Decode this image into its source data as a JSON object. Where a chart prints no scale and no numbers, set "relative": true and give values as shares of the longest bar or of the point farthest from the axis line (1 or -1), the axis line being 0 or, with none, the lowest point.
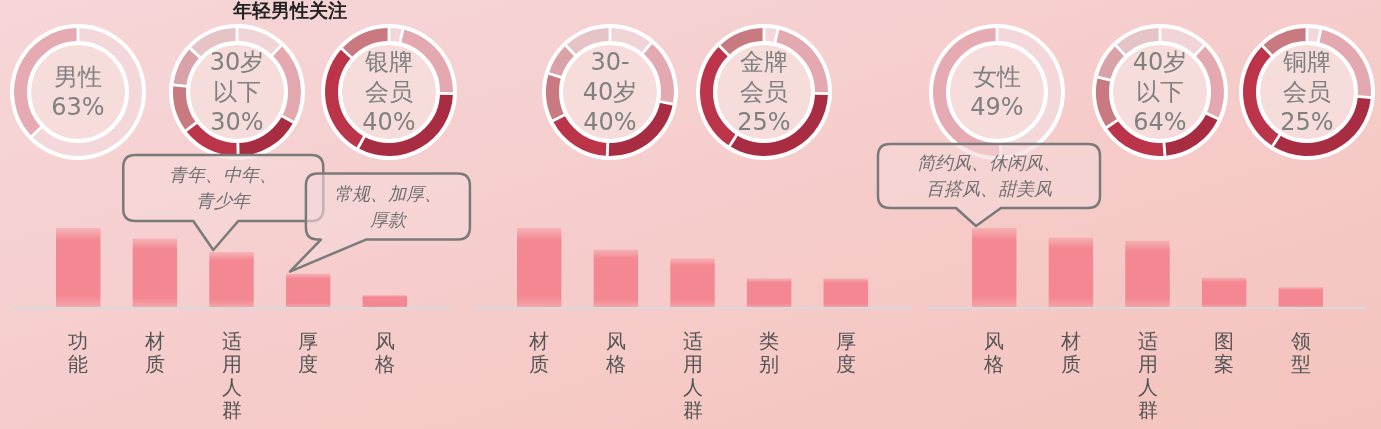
{
  "chart_data": [
    {
      "type": "donut",
      "categories": [
        null,
        null
      ],
      "values": [
        63,
        37
      ],
      "colors": [
        "#f3d7db",
        "#e5aab2"
      ],
      "annotations": [
        "男性",
        "63%"
      ]
    },
    {
      "type": "donut",
      "title": "年轻男性关注",
      "categories": [
        null,
        null,
        null,
        null,
        null,
        null,
        null
      ],
      "values": [
        12,
        21,
        17,
        15,
        12,
        10,
        13
      ],
      "colors": [
        "#f1d4d8",
        "#e4a9b0",
        "#a92d42",
        "#bb344a",
        "#c87a80",
        "#d9a2a8",
        "#e5c3c6"
      ],
      "annotations": [
        "30岁",
        "以下",
        "30%"
      ]
    },
    {
      "type": "donut",
      "categories": [
        null,
        null,
        null,
        null,
        null
      ],
      "values": [
        3,
        22,
        33,
        29,
        13
      ],
      "colors": [
        "#f3d7db",
        "#e4a9b0",
        "#a92d42",
        "#bb344a",
        "#c87a80"
      ],
      "annotations": [
        "银牌",
        "会员",
        "40%"
      ]
    },
    {
      "type": "donut",
      "categories": [
        null,
        null,
        null,
        null,
        null,
        null,
        null
      ],
      "values": [
        11,
        17,
        23,
        17,
        12,
        8,
        12
      ],
      "colors": [
        "#f1d4d8",
        "#e4a9b0",
        "#a92d42",
        "#bb344a",
        "#c87a80",
        "#d9a2a8",
        "#e5c3c6"
      ],
      "annotations": [
        "30-",
        "40岁",
        "40%"
      ]
    },
    {
      "type": "donut",
      "categories": [
        null,
        null,
        null,
        null,
        null
      ],
      "values": [
        3,
        22,
        34,
        29,
        12
      ],
      "colors": [
        "#f3d7db",
        "#e4a9b0",
        "#a92d42",
        "#bb344a",
        "#c87a80"
      ],
      "annotations": [
        "金牌",
        "会员",
        "25%"
      ]
    },
    {
      "type": "donut",
      "categories": [
        null,
        null
      ],
      "values": [
        49,
        51
      ],
      "colors": [
        "#f3d7db",
        "#e5aab2"
      ],
      "annotations": [
        "女性",
        "49%"
      ]
    },
    {
      "type": "donut",
      "categories": [
        null,
        null,
        null,
        null,
        null,
        null,
        null
      ],
      "values": [
        12,
        20,
        17,
        17,
        13,
        9,
        12
      ],
      "colors": [
        "#f1d4d8",
        "#e4a9b0",
        "#a92d42",
        "#bb344a",
        "#c87a80",
        "#d9a2a8",
        "#e5c3c6"
      ],
      "annotations": [
        "40岁",
        "以下",
        "64%"
      ]
    },
    {
      "type": "donut",
      "categories": [
        null,
        null,
        null,
        null,
        null
      ],
      "values": [
        3,
        23,
        33,
        29,
        12
      ],
      "colors": [
        "#f3d7db",
        "#e4a9b0",
        "#a92d42",
        "#bb344a",
        "#c87a80"
      ],
      "annotations": [
        "铜牌",
        "会员",
        "25%"
      ]
    },
    {
      "type": "bar",
      "relative": true,
      "categories": [
        "功能",
        "材质",
        "适用人群",
        "厚度",
        "风格"
      ],
      "values": [
        1,
        0.87,
        0.7,
        0.43,
        0.16
      ],
      "color": "#f4848f",
      "annotations": [
        {
          "text": "青年、中年、青少年",
          "x": "适用人群",
          "y": 0.7
        },
        {
          "text": "常规、加厚、厚款",
          "x": "厚度",
          "y": 0.43
        }
      ]
    },
    {
      "type": "bar",
      "relative": true,
      "categories": [
        "材质",
        "风格",
        "适用人群",
        "类别",
        "厚度"
      ],
      "values": [
        1,
        0.73,
        0.62,
        0.37,
        0.37
      ],
      "color": "#f4848f"
    },
    {
      "type": "bar",
      "relative": true,
      "categories": [
        "风格",
        "材质",
        "适用人群",
        "图案",
        "领型"
      ],
      "values": [
        1,
        0.88,
        0.84,
        0.38,
        0.26
      ],
      "color": "#f4848f",
      "annotations": [
        {
          "text": "简约风、休闲风、百搭风、甜美风",
          "x": "风格",
          "y": 1
        }
      ]
    }
  ]
}
